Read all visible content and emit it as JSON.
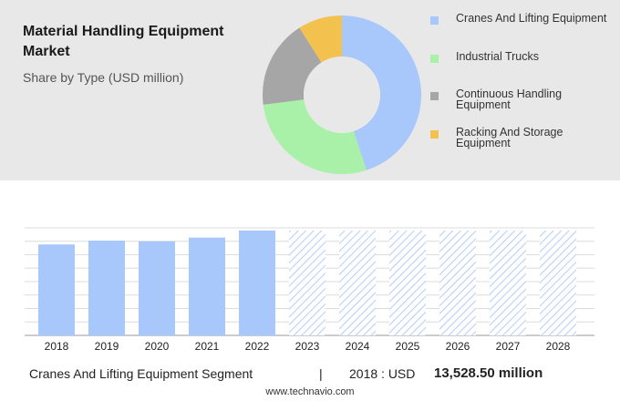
{
  "header": {
    "title": "Material Handling Equipment Market",
    "subtitle": "Share by Type (USD million)"
  },
  "colors": {
    "cranes": "#a8c7fa",
    "trucks": "#a9f0a9",
    "continuous": "#a6a6a6",
    "racking": "#f2c14e",
    "bar_actual": "#a8c7fa",
    "bar_forecast_hatch": "#b3cdfb"
  },
  "chart_data": [
    {
      "type": "pie",
      "variant": "donut",
      "legend_position": "right",
      "categories": [
        "Cranes And Lifting Equipment",
        "Industrial Trucks",
        "Continuous Handling Equipment",
        "Racking And Storage Equipment"
      ],
      "values": [
        45,
        28,
        18,
        9
      ],
      "colors": [
        "#a8c7fa",
        "#a9f0a9",
        "#a6a6a6",
        "#f2c14e"
      ]
    },
    {
      "type": "bar",
      "categories": [
        "2018",
        "2019",
        "2020",
        "2021",
        "2022",
        "2023",
        "2024",
        "2025",
        "2026",
        "2027",
        "2028"
      ],
      "values": [
        13528.5,
        14100,
        14000,
        14550,
        15600,
        15600,
        15600,
        15600,
        15600,
        15600,
        15600
      ],
      "forecast_from_index": 5,
      "ylim": [
        0,
        16000
      ],
      "grid": true
    }
  ],
  "footer": {
    "segment": "Cranes And Lifting Equipment Segment",
    "separator": "|",
    "year_label": "2018 : USD",
    "value": "13,528.50 million"
  },
  "source": "www.technavio.com"
}
